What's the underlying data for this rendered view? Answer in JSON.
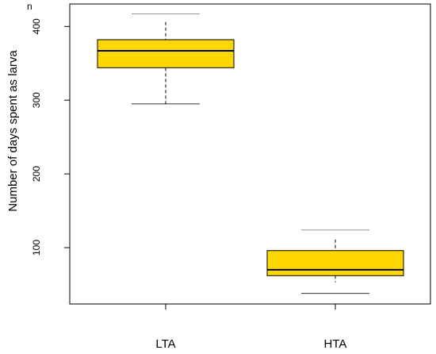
{
  "chart_data": {
    "type": "boxplot",
    "title": "",
    "corner_label": "n",
    "xlabel": "",
    "ylabel": "Number of days spent as larva",
    "ylim": [
      27,
      420
    ],
    "yticks": [
      100,
      200,
      300,
      400
    ],
    "grid": false,
    "categories": [
      "LTA",
      "HTA"
    ],
    "box_color": "#FFD700",
    "boxes": [
      {
        "name": "LTA",
        "whisker_low": 295,
        "q1": 344,
        "median": 367,
        "q3": 382,
        "whisker_high": 406,
        "line_low": 295,
        "line_high": 417
      },
      {
        "name": "HTA",
        "whisker_low": 53,
        "q1": 62,
        "median": 70,
        "q3": 96,
        "whisker_high": 111,
        "line_low": 38,
        "line_high": 124
      }
    ]
  }
}
